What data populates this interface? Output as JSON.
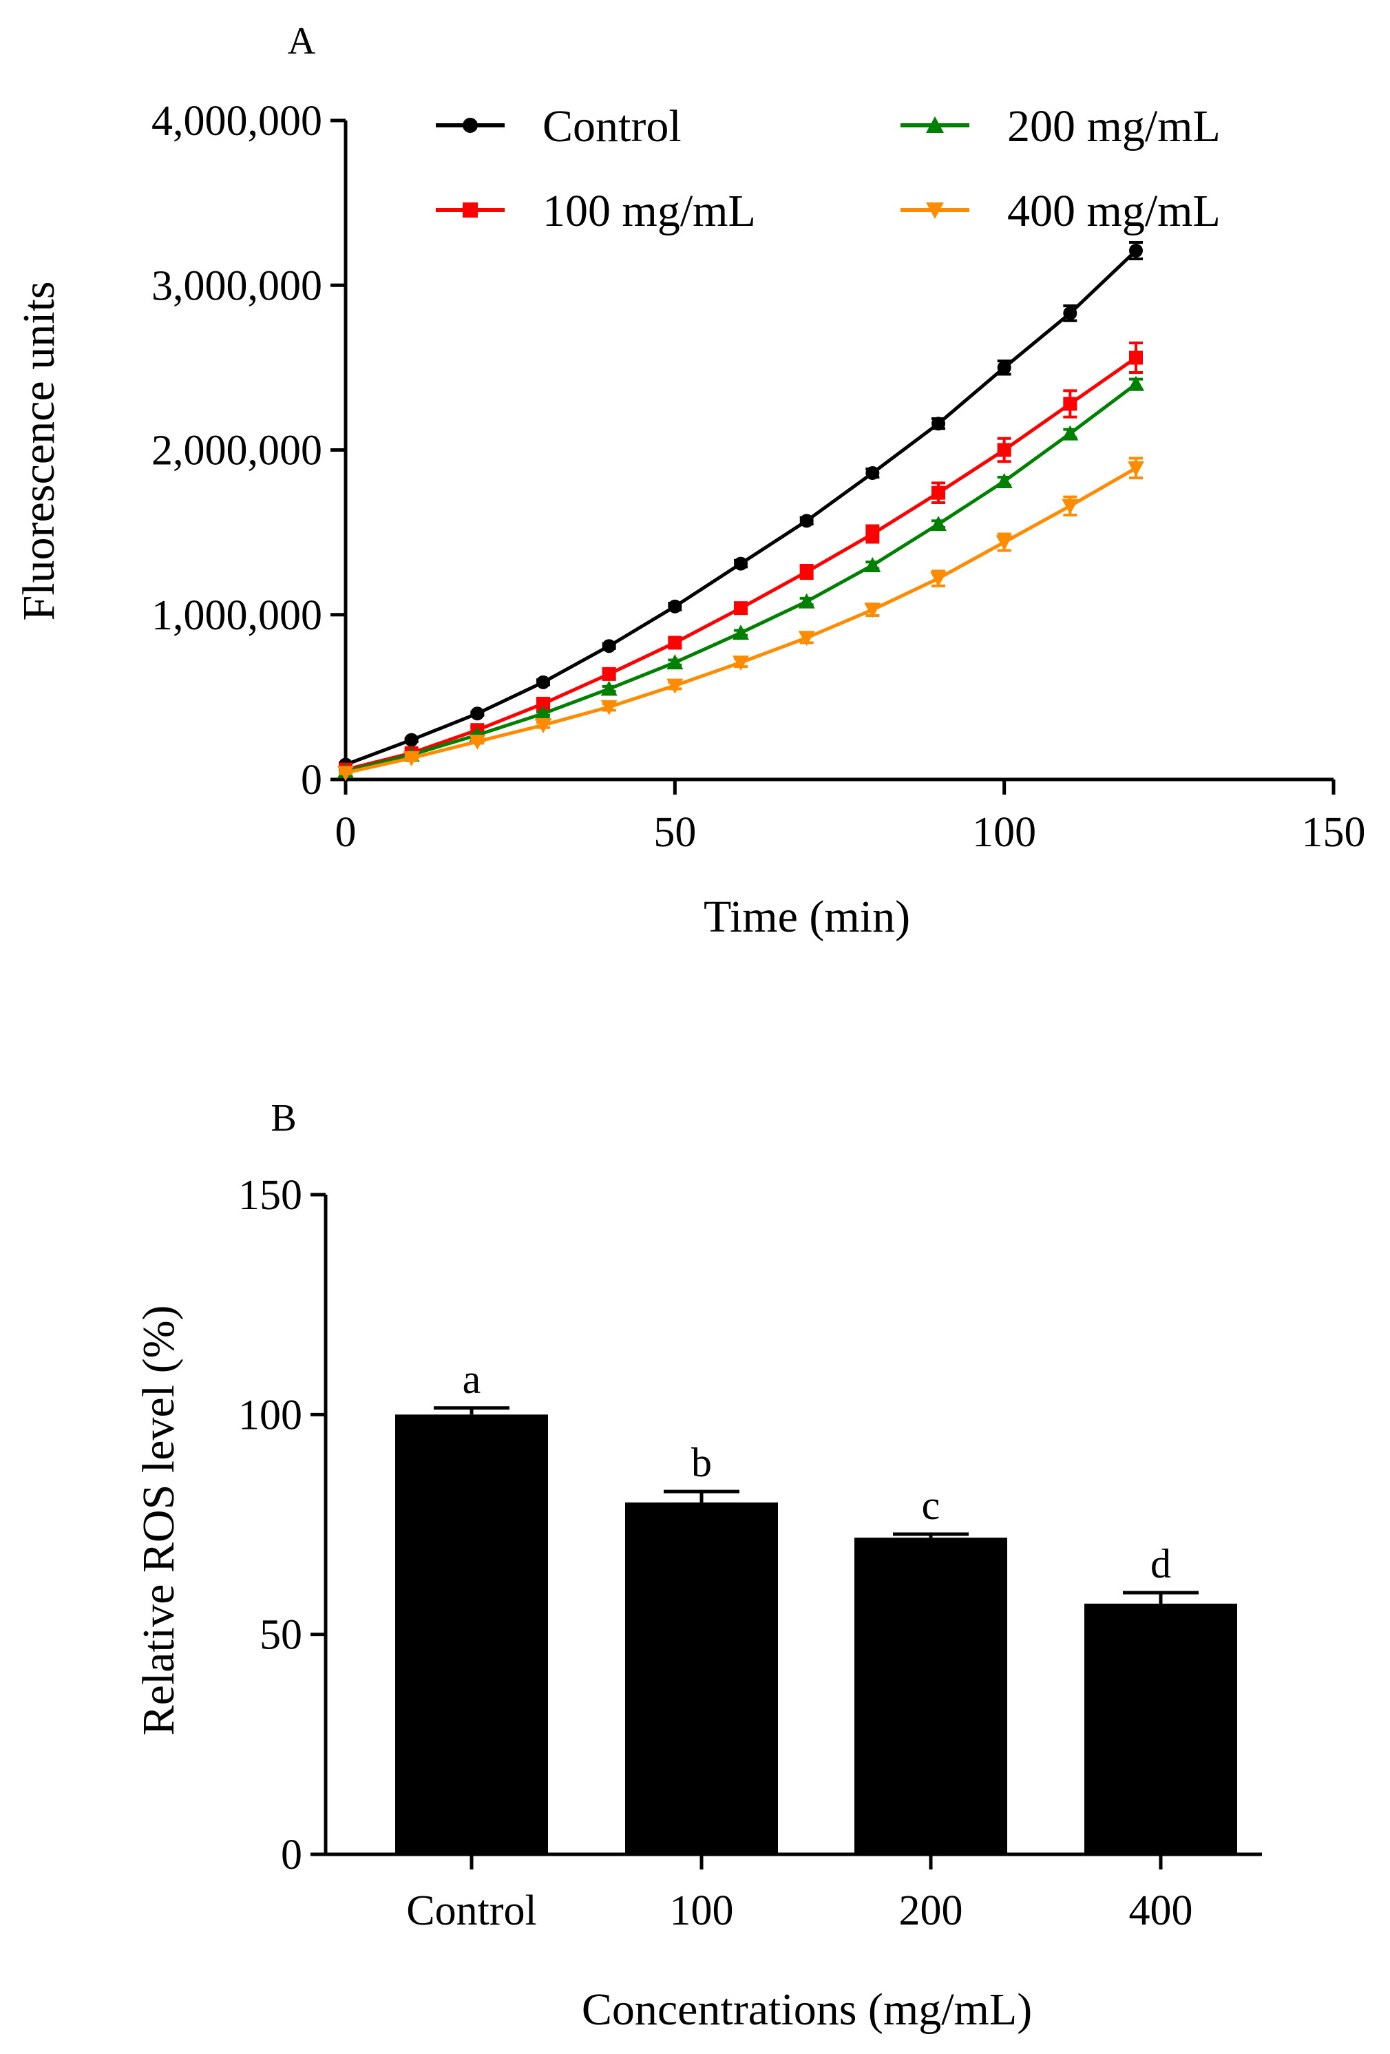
{
  "figure": {
    "panel_a_label": "A",
    "panel_b_label": "B"
  },
  "chart_data": [
    {
      "type": "line",
      "panel": "A",
      "xlabel": "Time (min)",
      "ylabel": "Fluorescence units",
      "xlim": [
        0,
        150
      ],
      "ylim": [
        0,
        4000000
      ],
      "xticks": [
        0,
        50,
        100,
        150
      ],
      "xtick_labels": [
        "0",
        "50",
        "100",
        "150"
      ],
      "yticks": [
        0,
        1000000,
        2000000,
        3000000,
        4000000
      ],
      "ytick_labels": [
        "0",
        "1,000,000",
        "2,000,000",
        "3,000,000",
        "4,000,000"
      ],
      "legend_placement": "top",
      "grid": false,
      "x": [
        0,
        10,
        20,
        30,
        40,
        50,
        60,
        70,
        80,
        90,
        100,
        110,
        120
      ],
      "series": [
        {
          "name": "Control",
          "color": "#000000",
          "marker": "circle",
          "values": [
            90000,
            240000,
            400000,
            590000,
            810000,
            1050000,
            1310000,
            1570000,
            1860000,
            2160000,
            2500000,
            2830000,
            3210000
          ],
          "errors": [
            10000,
            10000,
            10000,
            15000,
            15000,
            20000,
            20000,
            20000,
            25000,
            30000,
            40000,
            45000,
            50000
          ]
        },
        {
          "name": "100 mg/mL",
          "color": "#ff0000",
          "marker": "square",
          "values": [
            60000,
            160000,
            300000,
            460000,
            640000,
            830000,
            1040000,
            1260000,
            1490000,
            1740000,
            2000000,
            2280000,
            2560000
          ],
          "errors": [
            10000,
            15000,
            20000,
            25000,
            30000,
            30000,
            30000,
            40000,
            50000,
            60000,
            70000,
            80000,
            90000
          ]
        },
        {
          "name": "200 mg/mL",
          "color": "#008000",
          "marker": "triangle-up",
          "values": [
            50000,
            150000,
            270000,
            400000,
            550000,
            710000,
            890000,
            1080000,
            1300000,
            1550000,
            1810000,
            2100000,
            2400000
          ],
          "errors": [
            5000,
            8000,
            10000,
            10000,
            15000,
            15000,
            15000,
            20000,
            20000,
            20000,
            25000,
            25000,
            30000
          ]
        },
        {
          "name": "400 mg/mL",
          "color": "#ff8c00",
          "marker": "triangle-down",
          "values": [
            40000,
            130000,
            230000,
            330000,
            440000,
            570000,
            710000,
            860000,
            1030000,
            1220000,
            1440000,
            1660000,
            1890000
          ],
          "errors": [
            5000,
            10000,
            10000,
            15000,
            20000,
            20000,
            25000,
            30000,
            35000,
            45000,
            50000,
            55000,
            60000
          ]
        }
      ]
    },
    {
      "type": "bar",
      "panel": "B",
      "xlabel": "Concentrations (mg/mL)",
      "ylabel": "Relative  ROS level (%)",
      "categories": [
        "Control",
        "100",
        "200",
        "400"
      ],
      "values": [
        100,
        80,
        72,
        57
      ],
      "errors": [
        1.5,
        2.5,
        0.8,
        2.5
      ],
      "labels": [
        "a",
        "b",
        "c",
        "d"
      ],
      "color": "#000000",
      "ylim": [
        0,
        150
      ],
      "yticks": [
        0,
        50,
        100,
        150
      ],
      "ytick_labels": [
        "0",
        "50",
        "100",
        "150"
      ],
      "grid": false
    }
  ]
}
